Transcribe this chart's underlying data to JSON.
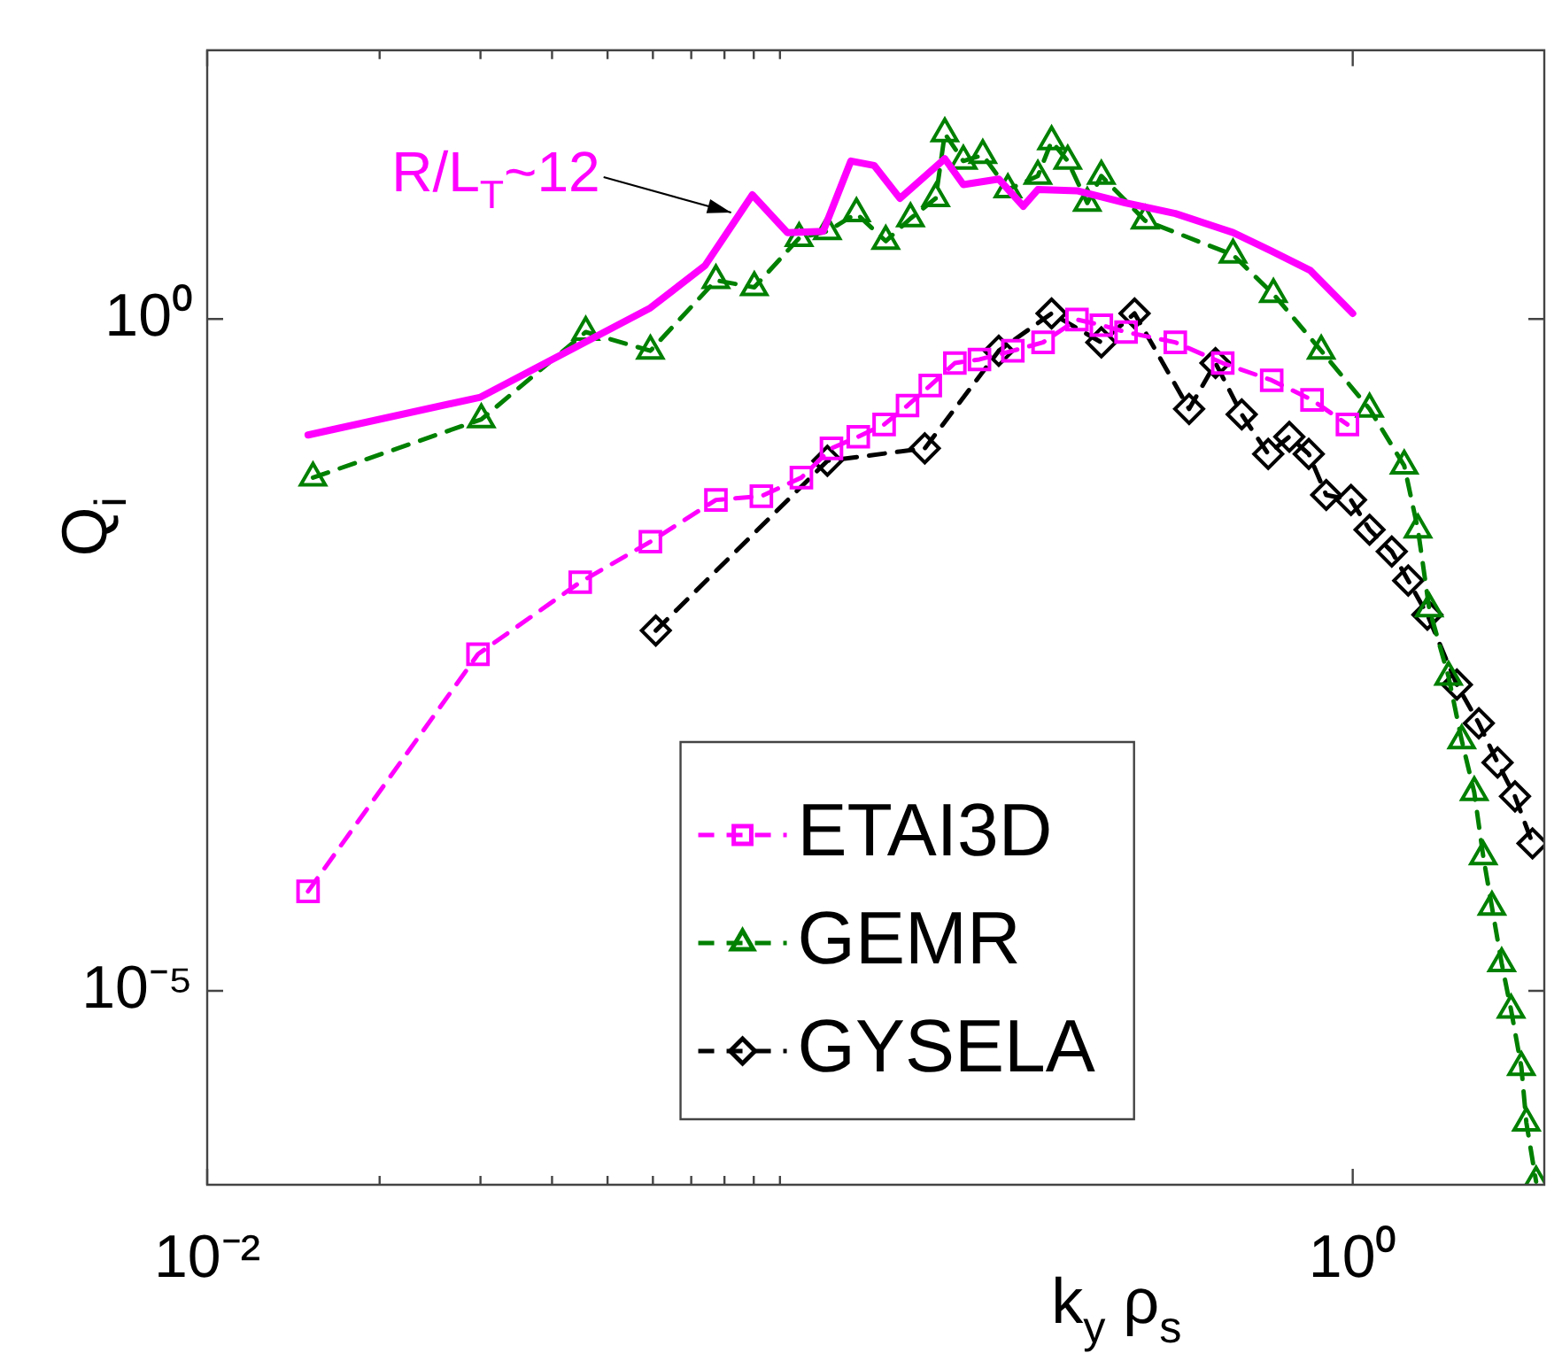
{
  "chart_data": {
    "type": "line",
    "xlabel": "k$_{y}$ ρ$_{s}$",
    "ylabel": "Q$_{i}$",
    "log": "xy",
    "grid": false,
    "legend": "bottom",
    "xlim": [
      0.01,
      2.16
    ],
    "ylim": [
      3.6e-07,
      100
    ],
    "xticks": [
      {
        "value": 0.01,
        "label": "10⁻²"
      },
      {
        "value": 0.02,
        "label": null
      },
      {
        "value": 0.03,
        "label": null
      },
      {
        "value": 0.04,
        "label": null
      },
      {
        "value": 0.05,
        "label": null
      },
      {
        "value": 0.06,
        "label": null
      },
      {
        "value": 0.07,
        "label": null
      },
      {
        "value": 0.08,
        "label": null
      },
      {
        "value": 0.09,
        "label": null
      },
      {
        "value": 0.1,
        "label": null
      },
      {
        "value": 1,
        "label": "10⁰"
      }
    ],
    "yticks": [
      {
        "value": 1e-05,
        "label": "10⁻⁵"
      },
      {
        "value": 1,
        "label": "10⁰"
      }
    ],
    "annotations": [
      {
        "text": "R/L$_{T}$~12",
        "x": 0.0895,
        "y": 8.4
      }
    ],
    "series": [
      {
        "type": "line",
        "color": "#ff00ff",
        "marker": "none",
        "line_style": "solid",
        "x": [
          0.015,
          0.03,
          0.0594,
          0.074,
          0.0895,
          0.103,
          0.119,
          0.133,
          0.146,
          0.162,
          0.194,
          0.209,
          0.241,
          0.266,
          0.282,
          0.33,
          0.402,
          0.49,
          0.618,
          0.722,
          0.843,
          1.0
        ],
        "values": [
          0.137,
          0.262,
          1.21,
          2.5,
          8.4,
          4.4,
          4.5,
          15,
          13.9,
          7.9,
          15.6,
          10,
          11,
          6.9,
          9.2,
          9.0,
          7.3,
          6.1,
          4.4,
          3.2,
          2.3,
          1.1
        ]
      },
      {
        "type": "line",
        "name": "ETAI3D",
        "color": "#ff00ff",
        "marker": "square",
        "line_style": "dashed",
        "x": [
          0.015,
          0.0297,
          0.0448,
          0.0594,
          0.0773,
          0.0928,
          0.109,
          0.123,
          0.137,
          0.152,
          0.167,
          0.183,
          0.202,
          0.223,
          0.255,
          0.288,
          0.33,
          0.364,
          0.402,
          0.49,
          0.593,
          0.722,
          0.849,
          0.979
        ],
        "values": [
          5.5e-05,
          0.0032,
          0.011,
          0.022,
          0.045,
          0.048,
          0.066,
          0.109,
          0.133,
          0.164,
          0.227,
          0.32,
          0.47,
          0.5,
          0.58,
          0.67,
          0.99,
          0.9,
          0.8,
          0.67,
          0.47,
          0.35,
          0.25,
          0.164
        ]
      },
      {
        "type": "line",
        "name": "GEMR",
        "color": "#008000",
        "marker": "triangle",
        "line_style": "dashed",
        "x": [
          0.0153,
          0.0301,
          0.0458,
          0.0594,
          0.0773,
          0.0902,
          0.108,
          0.121,
          0.136,
          0.153,
          0.169,
          0.187,
          0.194,
          0.209,
          0.226,
          0.25,
          0.282,
          0.298,
          0.318,
          0.344,
          0.364,
          0.434,
          0.618,
          0.727,
          0.881,
          1.07,
          1.23,
          1.3,
          1.36,
          1.47,
          1.55,
          1.63,
          1.69,
          1.75,
          1.82,
          1.89,
          1.97,
          2.01,
          2.09
        ],
        "values": [
          0.0659,
          0.179,
          0.8,
          0.58,
          1.94,
          1.72,
          4.0,
          4.5,
          6.1,
          3.8,
          5.6,
          7.9,
          24,
          15,
          16.6,
          9.2,
          11.6,
          21,
          15,
          7.3,
          11.6,
          5.4,
          3.0,
          1.53,
          0.58,
          0.214,
          0.081,
          0.027,
          0.007,
          0.00217,
          0.00073,
          0.0003,
          0.0001,
          4.2e-05,
          1.6e-05,
          7.2e-06,
          2.7e-06,
          1.04e-06,
          3.8e-07
        ]
      },
      {
        "type": "line",
        "name": "GYSELA",
        "color": "#000000",
        "marker": "diamond",
        "line_style": "dashed",
        "x": [
          0.0607,
          0.121,
          0.179,
          0.241,
          0.298,
          0.364,
          0.416,
          0.518,
          0.576,
          0.64,
          0.712,
          0.775,
          0.838,
          0.899,
          0.993,
          1.07,
          1.17,
          1.25,
          1.35,
          1.52,
          1.66,
          1.79,
          1.92,
          2.06
        ],
        "values": [
          0.0048,
          0.088,
          0.109,
          0.58,
          1.1,
          0.67,
          1.1,
          0.214,
          0.47,
          0.195,
          0.099,
          0.133,
          0.099,
          0.049,
          0.045,
          0.027,
          0.0186,
          0.0113,
          0.0063,
          0.0019,
          0.00098,
          0.0005,
          0.00028,
          0.000125
        ]
      }
    ]
  }
}
